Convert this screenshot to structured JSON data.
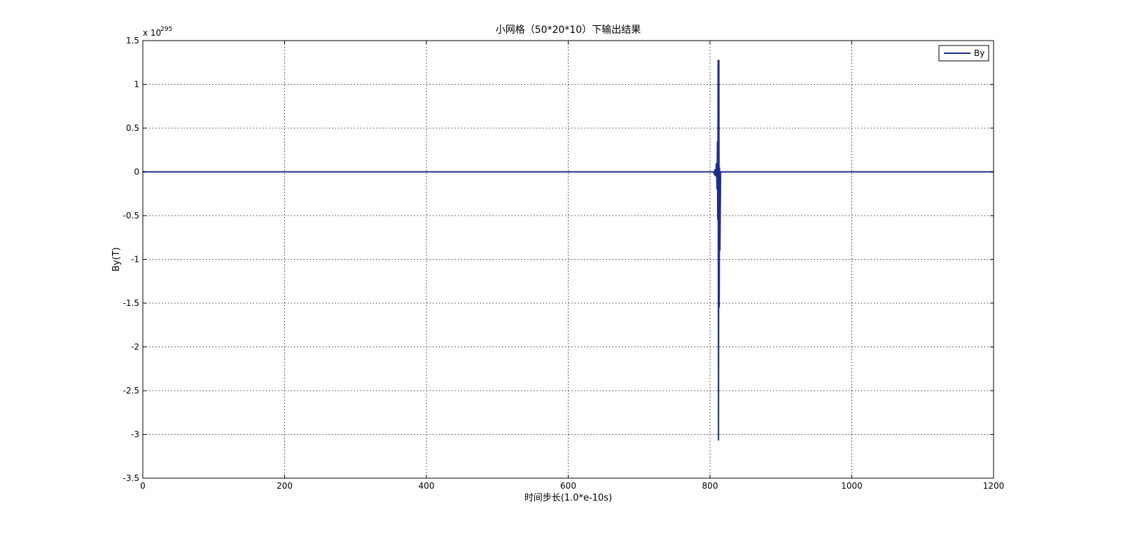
{
  "chart_data": {
    "type": "line",
    "title": "小网格（50*20*10）下输出结果",
    "xlabel": "时间步长(1.0*e-10s)",
    "ylabel": "By(T)",
    "y_exponent_prefix": "x 10",
    "y_exponent": "295",
    "xlim": [
      0,
      1200
    ],
    "ylim": [
      -3.5,
      1.5
    ],
    "xticks": [
      0,
      200,
      400,
      600,
      800,
      1000,
      1200
    ],
    "xtick_labels": [
      "0",
      "200",
      "400",
      "600",
      "800",
      "1000",
      "1200"
    ],
    "yticks": [
      -3.5,
      -3,
      -2.5,
      -2,
      -1.5,
      -1,
      -0.5,
      0,
      0.5,
      1,
      1.5
    ],
    "ytick_labels": [
      "-3.5",
      "-3",
      "-2.5",
      "-2",
      "-1.5",
      "-1",
      "-0.5",
      "0",
      "0.5",
      "1",
      "1.5"
    ],
    "grid": true,
    "legend_position": "top-right",
    "series": [
      {
        "name": "By",
        "color": "#1f2e8c",
        "x": [
          0,
          805,
          806,
          807,
          808,
          809,
          810,
          810.5,
          811,
          811.5,
          812,
          812.5,
          813,
          813.5,
          814,
          815,
          1200
        ],
        "y": [
          0,
          0,
          -0.02,
          0.03,
          -0.05,
          0.1,
          -0.2,
          0.35,
          -0.55,
          1.28,
          -3.07,
          1.28,
          -1.55,
          0.05,
          -0.9,
          0,
          0
        ]
      }
    ]
  }
}
